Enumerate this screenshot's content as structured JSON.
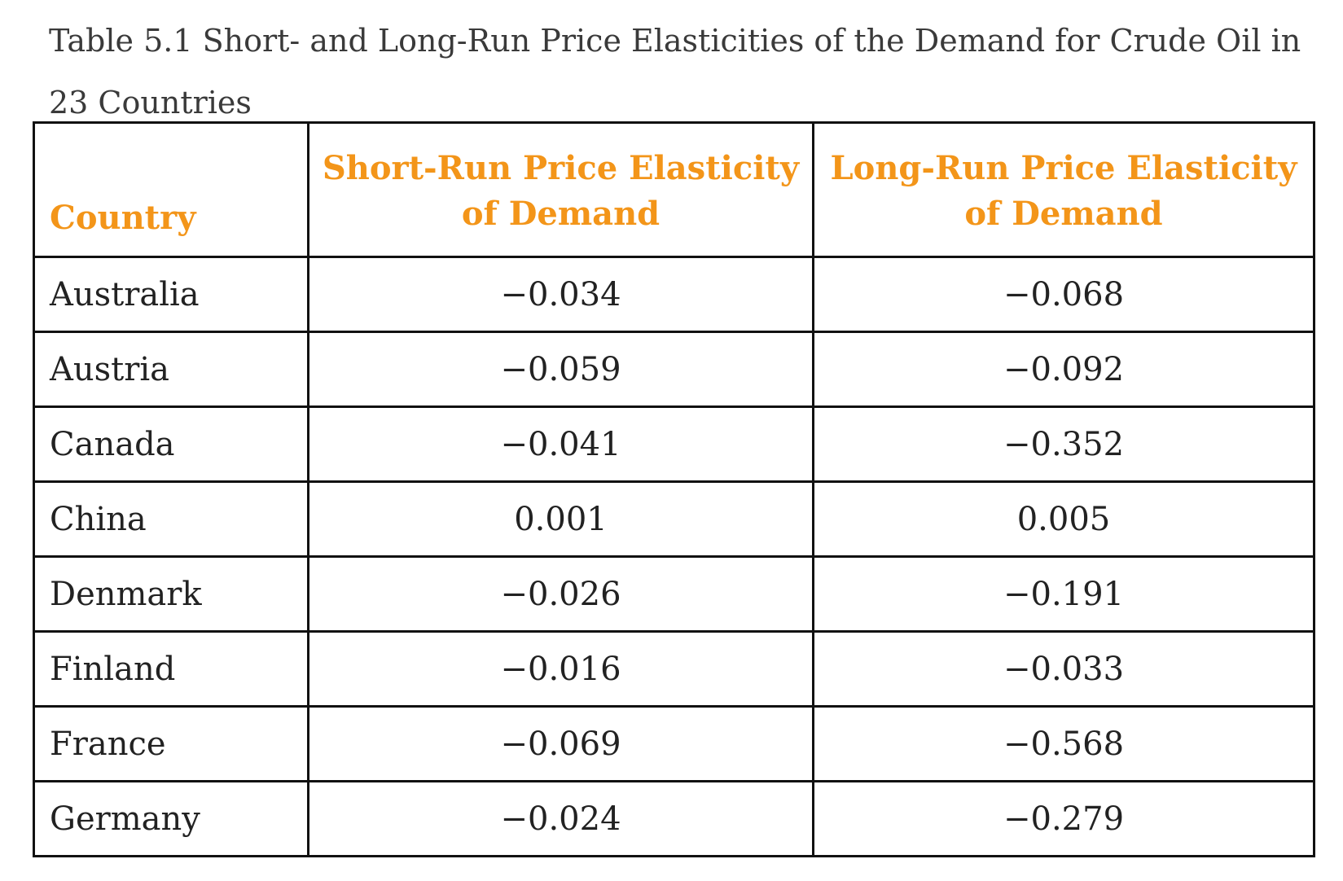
{
  "caption": "Table 5.1 Short- and Long-Run Price Elasticities of the Demand for Crude Oil in 23 Countries",
  "colors": {
    "header_text": "#f39519",
    "border": "#111111"
  },
  "table": {
    "headers": [
      "Country",
      "Short-Run Price Elasticity of Demand",
      "Long-Run Price Elasticity of Demand"
    ],
    "rows": [
      [
        "Australia",
        "−0.034",
        "−0.068"
      ],
      [
        "Austria",
        "−0.059",
        "−0.092"
      ],
      [
        "Canada",
        "−0.041",
        "−0.352"
      ],
      [
        "China",
        "0.001",
        "0.005"
      ],
      [
        "Denmark",
        "−0.026",
        "−0.191"
      ],
      [
        "Finland",
        "−0.016",
        "−0.033"
      ],
      [
        "France",
        "−0.069",
        "−0.568"
      ],
      [
        "Germany",
        "−0.024",
        "−0.279"
      ]
    ]
  }
}
